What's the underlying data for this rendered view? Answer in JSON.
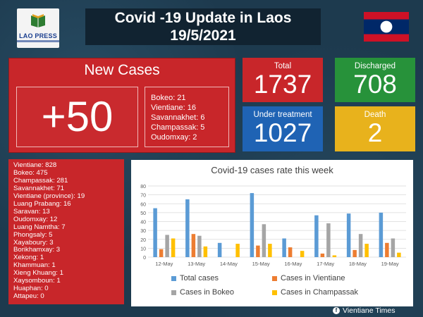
{
  "header": {
    "logo_text": "LAO PRESS",
    "title_line1": "Covid -19 Update in Laos",
    "title_line2": "19/5/2021",
    "flag_colors": [
      "#ce1126",
      "#002868",
      "#ffffff"
    ]
  },
  "new_cases": {
    "heading": "New Cases",
    "value": "+50",
    "by_province": [
      "Bokeo: 21",
      "Vientiane: 16",
      "Savannakhet: 6",
      "Champassak: 5",
      "Oudomxay: 2"
    ]
  },
  "stats": {
    "total": {
      "label": "Total",
      "value": "1737",
      "color": "#c8262a"
    },
    "discharged": {
      "label": "Discharged",
      "value": "708",
      "color": "#27923a"
    },
    "under_treatment": {
      "label": "Under treatment",
      "value": "1027",
      "color": "#1f63b4"
    },
    "death": {
      "label": "Death",
      "value": "2",
      "color": "#e8b21c"
    }
  },
  "province_totals": [
    "Vientiane: 828",
    "Bokeo: 475",
    "Champassak: 281",
    "Savannakhet: 71",
    "Vientiane (province): 19",
    "Luang Prabang: 16",
    "Saravan: 13",
    "Oudomxay: 12",
    "Luang Namtha: 7",
    "Phongsaly: 5",
    "Xayaboury: 3",
    "Borikhamxay: 3",
    "Xekong: 1",
    "Khammuan: 1",
    "Xieng Khuang: 1",
    "Xaysomboun: 1",
    "Huaphan: 0",
    "Attapeu: 0"
  ],
  "chart_data": {
    "type": "bar",
    "title": "Covid-19 cases rate this week",
    "categories": [
      "12-May",
      "13-May",
      "14-May",
      "15-May",
      "16-May",
      "17-May",
      "18-May",
      "19-May"
    ],
    "series": [
      {
        "name": "Total cases",
        "color": "#5b9bd5",
        "values": [
          55,
          65,
          16,
          72,
          21,
          47,
          49,
          50
        ]
      },
      {
        "name": "Cases in Vientiane",
        "color": "#ed7d31",
        "values": [
          9,
          26,
          0,
          13,
          11,
          4,
          8,
          16
        ]
      },
      {
        "name": "Cases in Bokeo",
        "color": "#a5a5a5",
        "values": [
          25,
          24,
          0,
          37,
          0,
          38,
          26,
          21
        ]
      },
      {
        "name": "Cases in Champassak",
        "color": "#ffc000",
        "values": [
          21,
          12,
          15,
          15,
          7,
          2,
          15,
          5
        ]
      }
    ],
    "yticks": [
      0,
      10,
      20,
      30,
      40,
      50,
      60,
      70,
      80
    ],
    "ylim": [
      0,
      80
    ],
    "grid": true,
    "legend": "bottom"
  },
  "footer": {
    "source": "Vientiane Times",
    "icon": "facebook-icon"
  }
}
